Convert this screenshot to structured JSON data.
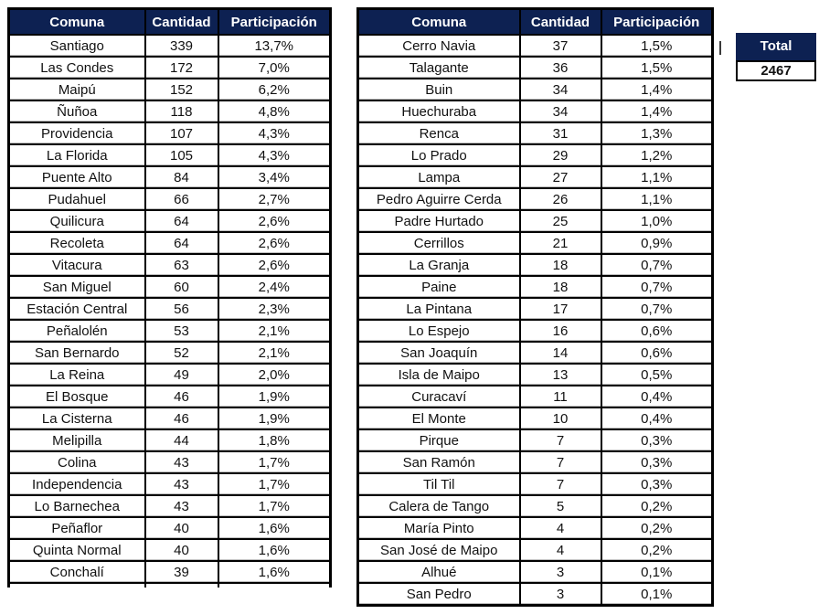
{
  "colors": {
    "header_bg": "#0d2152",
    "header_text": "#ffffff",
    "body_text": "#111111",
    "border": "#000000"
  },
  "total_box": {
    "label": "Total",
    "value": "2467"
  },
  "chart_data": {
    "type": "table",
    "columns": [
      "Comuna",
      "Cantidad",
      "Participación"
    ],
    "left_table_rows": [
      [
        "Santiago",
        "339",
        "13,7%"
      ],
      [
        "Las Condes",
        "172",
        "7,0%"
      ],
      [
        "Maipú",
        "152",
        "6,2%"
      ],
      [
        "Ñuñoa",
        "118",
        "4,8%"
      ],
      [
        "Providencia",
        "107",
        "4,3%"
      ],
      [
        "La Florida",
        "105",
        "4,3%"
      ],
      [
        "Puente Alto",
        "84",
        "3,4%"
      ],
      [
        "Pudahuel",
        "66",
        "2,7%"
      ],
      [
        "Quilicura",
        "64",
        "2,6%"
      ],
      [
        "Recoleta",
        "64",
        "2,6%"
      ],
      [
        "Vitacura",
        "63",
        "2,6%"
      ],
      [
        "San Miguel",
        "60",
        "2,4%"
      ],
      [
        "Estación Central",
        "56",
        "2,3%"
      ],
      [
        "Peñalolén",
        "53",
        "2,1%"
      ],
      [
        "San Bernardo",
        "52",
        "2,1%"
      ],
      [
        "La Reina",
        "49",
        "2,0%"
      ],
      [
        "El Bosque",
        "46",
        "1,9%"
      ],
      [
        "La Cisterna",
        "46",
        "1,9%"
      ],
      [
        "Melipilla",
        "44",
        "1,8%"
      ],
      [
        "Colina",
        "43",
        "1,7%"
      ],
      [
        "Independencia",
        "43",
        "1,7%"
      ],
      [
        "Lo Barnechea",
        "43",
        "1,7%"
      ],
      [
        "Peñaflor",
        "40",
        "1,6%"
      ],
      [
        "Quinta Normal",
        "40",
        "1,6%"
      ],
      [
        "Conchalí",
        "39",
        "1,6%"
      ]
    ],
    "right_table_rows": [
      [
        "Cerro Navia",
        "37",
        "1,5%"
      ],
      [
        "Talagante",
        "36",
        "1,5%"
      ],
      [
        "Buin",
        "34",
        "1,4%"
      ],
      [
        "Huechuraba",
        "34",
        "1,4%"
      ],
      [
        "Renca",
        "31",
        "1,3%"
      ],
      [
        "Lo Prado",
        "29",
        "1,2%"
      ],
      [
        "Lampa",
        "27",
        "1,1%"
      ],
      [
        "Pedro Aguirre Cerda",
        "26",
        "1,1%"
      ],
      [
        "Padre Hurtado",
        "25",
        "1,0%"
      ],
      [
        "Cerrillos",
        "21",
        "0,9%"
      ],
      [
        "La Granja",
        "18",
        "0,7%"
      ],
      [
        "Paine",
        "18",
        "0,7%"
      ],
      [
        "La Pintana",
        "17",
        "0,7%"
      ],
      [
        "Lo Espejo",
        "16",
        "0,6%"
      ],
      [
        "San Joaquín",
        "14",
        "0,6%"
      ],
      [
        "Isla de Maipo",
        "13",
        "0,5%"
      ],
      [
        "Curacaví",
        "11",
        "0,4%"
      ],
      [
        "El Monte",
        "10",
        "0,4%"
      ],
      [
        "Pirque",
        "7",
        "0,3%"
      ],
      [
        "San Ramón",
        "7",
        "0,3%"
      ],
      [
        "Til Til",
        "7",
        "0,3%"
      ],
      [
        "Calera de Tango",
        "5",
        "0,2%"
      ],
      [
        "María Pinto",
        "4",
        "0,2%"
      ],
      [
        "San José de Maipo",
        "4",
        "0,2%"
      ],
      [
        "Alhué",
        "3",
        "0,1%"
      ],
      [
        "San Pedro",
        "3",
        "0,1%"
      ]
    ],
    "total_label": "Total",
    "total_value": "2467"
  }
}
